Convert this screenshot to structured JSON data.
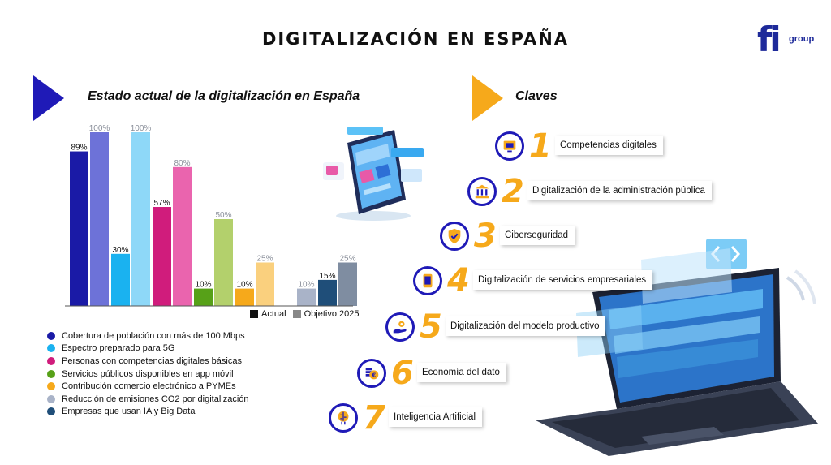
{
  "title": "DIGITALIZACIÓN EN ESPAÑA",
  "logo": {
    "mark": "fi",
    "sub": "group"
  },
  "left_section": {
    "title": "Estado actual de la digitalización en España"
  },
  "right_section": {
    "title": "Claves"
  },
  "chart_data": {
    "type": "bar",
    "title": "",
    "xlabel": "",
    "ylabel": "",
    "ylim": [
      0,
      100
    ],
    "grid": false,
    "legend_position": "bottom-right",
    "categories": [
      "Cobertura de población con más de 100 Mbps",
      "Espectro preparado para 5G",
      "Personas con competencias digitales básicas",
      "Servicios públicos disponibles en app móvil",
      "Contribución comercio electrónico a PYMEs",
      "Reducción de emisiones CO2 por digitalización",
      "Empresas que usan IA y Big Data"
    ],
    "series": [
      {
        "name": "Actual",
        "values": [
          89,
          30,
          57,
          10,
          10,
          null,
          15
        ],
        "labels": [
          "89%",
          "30%",
          "57%",
          "10%",
          "10%",
          null,
          "15%"
        ]
      },
      {
        "name": "Objetivo 2025",
        "values": [
          100,
          100,
          80,
          50,
          25,
          10,
          25
        ],
        "labels": [
          "100%",
          "100%",
          "80%",
          "50%",
          "25%",
          "10%",
          "25%"
        ]
      }
    ],
    "colors": {
      "actual": [
        "#1a1aa6",
        "#1ab2f0",
        "#d01c7c",
        "#57a118",
        "#f6a91b",
        "#a9b3c8",
        "#1f4e79"
      ],
      "objetivo": [
        "#6d72d8",
        "#8ed8f8",
        "#ea64ae",
        "#b3d06c",
        "#fad07e",
        "#a9b3c8",
        "#7f8da1"
      ]
    }
  },
  "chart_legend": {
    "items": [
      {
        "label": "Actual",
        "color": "#111111"
      },
      {
        "label": "Objetivo 2025",
        "color": "#888888"
      }
    ]
  },
  "claves": [
    {
      "num": "1",
      "label": "Competencias digitales",
      "icon": "monitor-icon"
    },
    {
      "num": "2",
      "label": "Digitalización de la administración pública",
      "icon": "government-building-icon"
    },
    {
      "num": "3",
      "label": "Ciberseguridad",
      "icon": "shield-check-icon"
    },
    {
      "num": "4",
      "label": "Digitalización de servicios empresariales",
      "icon": "tablet-icon"
    },
    {
      "num": "5",
      "label": "Digitalización del modelo productivo",
      "icon": "hand-gear-icon"
    },
    {
      "num": "6",
      "label": "Economía del dato",
      "icon": "coins-icon"
    },
    {
      "num": "7",
      "label": "Inteligencia Artificial",
      "icon": "brain-circuit-icon"
    }
  ]
}
